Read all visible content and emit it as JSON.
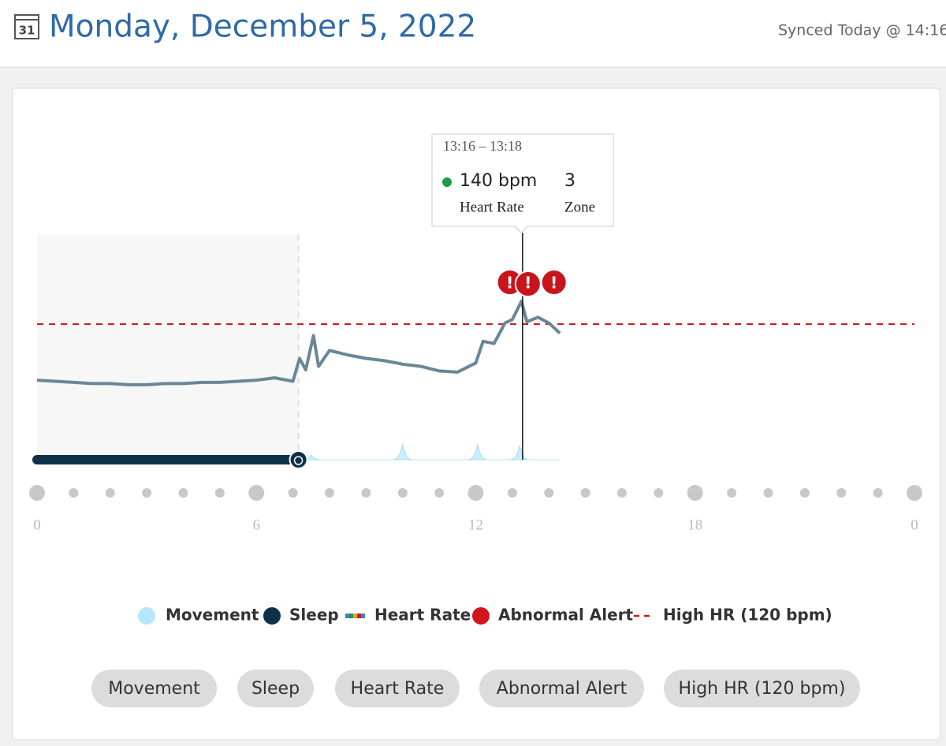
{
  "header": {
    "calendar_day": "31",
    "title": "Monday, December 5, 2022",
    "sync": "Synced Today @ 14:16"
  },
  "chart": {
    "type": "line",
    "x": [
      0,
      0.5,
      1,
      1.5,
      2,
      2.5,
      3,
      3.5,
      4,
      4.5,
      5,
      5.5,
      6,
      6.5,
      7,
      7.18,
      7.35,
      7.56,
      7.7,
      8,
      8.5,
      9,
      9.5,
      10,
      10.5,
      11,
      11.5,
      12,
      12.2,
      12.5,
      12.8,
      13,
      13.25,
      13.4,
      13.7,
      14,
      14.3
    ],
    "heart_rate": [
      71,
      70,
      69,
      68,
      68,
      67,
      67,
      68,
      68,
      69,
      69,
      70,
      71,
      73,
      70,
      90,
      80,
      110,
      83,
      97,
      93,
      90,
      88,
      85,
      83,
      79,
      78,
      86,
      105,
      103,
      121,
      124,
      140,
      122,
      126,
      121,
      112
    ],
    "color": "#6a8796",
    "xlim": [
      0,
      24
    ],
    "ylim": [
      20,
      170
    ],
    "xticks": [
      0,
      6,
      12,
      18,
      {
        "value": 24,
        "label": "0"
      }
    ],
    "high_hr": 120,
    "sleep": [
      0,
      7.15
    ],
    "movement": {
      "x": [
        7.5,
        10,
        12.05,
        13.2
      ],
      "values": [
        0.3,
        1,
        1,
        0.9
      ],
      "ylim": [
        0,
        1
      ]
    },
    "alerts": [
      12.93,
      13.43,
      14.14
    ],
    "tooltip": {
      "x": 13.28,
      "time": "13:16 – 13:18",
      "value": "140 bpm",
      "zone": "3",
      "value_label": "Heart Rate",
      "zone_label": "Zone"
    }
  },
  "legend": [
    "Movement",
    "Sleep",
    "Heart Rate",
    "Abnormal Alert",
    "High HR (120 bpm)"
  ],
  "buttons": [
    "Movement",
    "Sleep",
    "Heart Rate",
    "Abnormal Alert",
    "High HR (120 bpm)"
  ]
}
